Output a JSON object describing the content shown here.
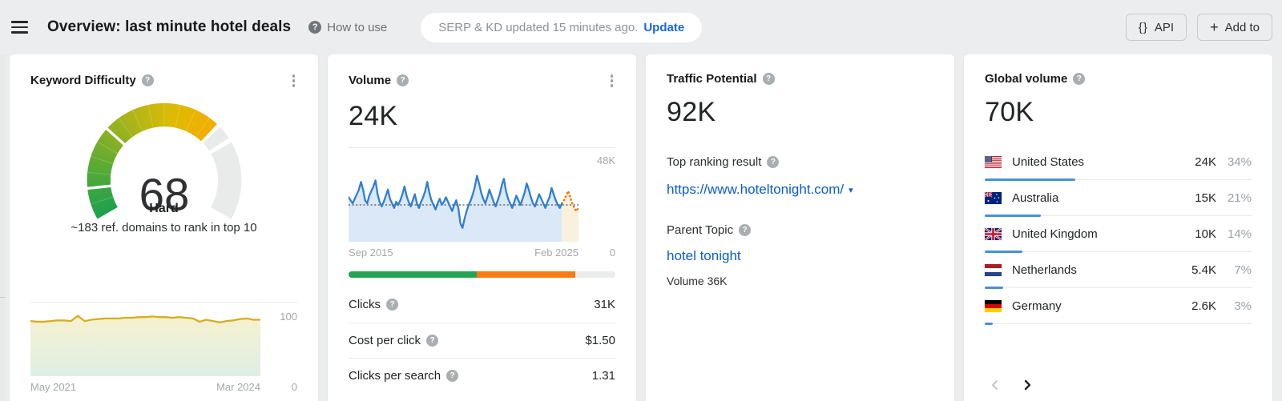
{
  "topbar": {
    "title": "Overview: last minute hotel deals",
    "how_to_use": "How to use",
    "serp_status": "SERP & KD updated 15 minutes ago.",
    "update_label": "Update",
    "api_label": "API",
    "api_icon": "{}",
    "add_to_label": "Add to",
    "plus_icon": "+"
  },
  "cards": {
    "kd": {
      "title": "Keyword Difficulty",
      "value": "68",
      "level": "Hard",
      "description": "~183 ref. domains to rank in top 10",
      "axis": {
        "y_top": "100",
        "y_bottom": "0",
        "x_start": "May 2021",
        "x_end": "Mar 2024"
      }
    },
    "volume": {
      "title": "Volume",
      "value": "24K",
      "axis": {
        "y_top": "48K",
        "y_bottom": "0",
        "x_start": "Sep 2015",
        "x_end": "Feb 2025"
      },
      "rows": [
        {
          "label": "Clicks",
          "value": "31K"
        },
        {
          "label": "Cost per click",
          "value": "$1.50"
        },
        {
          "label": "Clicks per search",
          "value": "1.31"
        }
      ]
    },
    "traffic_potential": {
      "title": "Traffic Potential",
      "value": "92K",
      "top_ranking_label": "Top ranking result",
      "top_ranking_url": "https://www.hoteltonight.com/",
      "caret": "▾",
      "parent_topic_label": "Parent Topic",
      "parent_topic": "hotel tonight",
      "parent_topic_volume": "Volume 36K"
    },
    "global_volume": {
      "title": "Global volume",
      "value": "70K",
      "countries": [
        {
          "flag": "us",
          "name": "United States",
          "volume": "24K",
          "percent": "34%",
          "percent_value": 34
        },
        {
          "flag": "au",
          "name": "Australia",
          "volume": "15K",
          "percent": "21%",
          "percent_value": 21
        },
        {
          "flag": "gb",
          "name": "United Kingdom",
          "volume": "10K",
          "percent": "14%",
          "percent_value": 14
        },
        {
          "flag": "nl",
          "name": "Netherlands",
          "volume": "5.4K",
          "percent": "7%",
          "percent_value": 7
        },
        {
          "flag": "de",
          "name": "Germany",
          "volume": "2.6K",
          "percent": "3%",
          "percent_value": 3
        }
      ]
    }
  },
  "colors": {
    "link_blue": "#0b5dc7",
    "update_blue": "#1568d8",
    "country_bar_blue": "#4a90d2",
    "volume_line_blue": "#2e7fd1",
    "volume_fill_blue": "#d8e7f7",
    "forecast_orange": "#f07a12",
    "forecast_fill": "#faf1dc",
    "kd_line_yellow": "#d6ae1e",
    "gauge_track_gray": "#e9eaea"
  },
  "chart_data": [
    {
      "type": "gauge",
      "title": "Keyword Difficulty",
      "value": 68,
      "min": 0,
      "max": 100,
      "label": "Hard",
      "segment_gaps": [
        10,
        30
      ],
      "track_gap_from": 69.2,
      "track_gap_to": 75.2,
      "track_split": 73.6,
      "color_stops": [
        [
          0,
          "#1ea14f"
        ],
        [
          0.3,
          "#66ac30"
        ],
        [
          0.55,
          "#abb41a"
        ],
        [
          0.78,
          "#dcbc04"
        ],
        [
          1,
          "#f3ae00"
        ]
      ],
      "track_color": "#e9eaea"
    },
    {
      "type": "area",
      "title": "Keyword Difficulty history",
      "x_start_label": "May 2021",
      "x_end_label": "Mar 2024",
      "ylim": [
        0,
        100
      ],
      "line_color": "#d6ae1e",
      "fill_gradient": [
        "#f6f1cd",
        "#dcede4"
      ],
      "values": [
        84,
        83,
        83,
        84,
        85,
        85,
        84,
        92,
        84,
        86,
        87,
        88,
        88,
        88,
        89,
        89,
        90,
        90,
        91,
        90,
        90,
        89,
        90,
        89,
        88,
        83,
        86,
        84,
        82,
        84,
        85,
        87,
        88,
        86,
        86
      ]
    },
    {
      "type": "area",
      "title": "Search volume history",
      "x_start_label": "Sep 2015",
      "x_end_label": "Feb 2025",
      "ylim": [
        0,
        48
      ],
      "avg_line": 24,
      "line_color": "#2e7fd1",
      "fill_color": "#d8e7f7",
      "forecast_color": "#f07a12",
      "forecast_fill": "#faf1dc",
      "values": [
        29,
        27,
        25,
        28,
        31,
        34,
        39,
        34,
        27,
        25,
        30,
        33,
        36,
        40,
        31,
        26,
        23,
        26,
        30,
        34,
        28,
        25,
        22,
        26,
        24,
        27,
        31,
        36,
        30,
        26,
        23,
        27,
        31,
        25,
        22,
        26,
        29,
        33,
        39,
        32,
        27,
        24,
        21,
        25,
        28,
        24,
        26,
        29,
        26,
        23,
        20,
        24,
        27,
        22,
        12,
        9,
        15,
        20,
        24,
        27,
        31,
        36,
        43,
        38,
        32,
        28,
        25,
        29,
        34,
        30,
        26,
        23,
        27,
        31,
        37,
        41,
        33,
        28,
        25,
        22,
        26,
        30,
        27,
        24,
        28,
        32,
        38,
        34,
        29,
        25,
        23,
        27,
        31,
        28,
        25,
        22,
        26,
        29,
        35,
        31,
        27,
        24,
        22,
        25
      ],
      "forecast_values": [
        27,
        30,
        33,
        29,
        25,
        22,
        20,
        22
      ]
    },
    {
      "type": "stacked_bar",
      "title": "Clicks distribution",
      "segments": [
        {
          "name": "organic",
          "color": "#23a455",
          "fraction": 0.48
        },
        {
          "name": "paid",
          "color": "#fa7a14",
          "fraction": 0.37
        },
        {
          "name": "none",
          "color": "#ebecec",
          "fraction": 0.15
        }
      ]
    }
  ]
}
